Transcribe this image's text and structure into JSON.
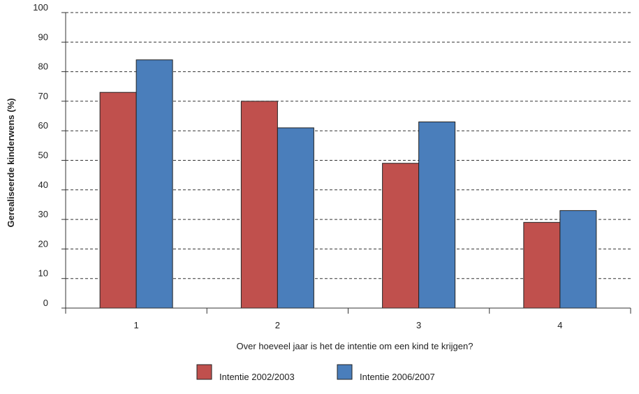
{
  "chart_data": {
    "type": "bar",
    "title": "",
    "xlabel": "Over hoeveel jaar is het de intentie om een kind te krijgen?",
    "ylabel": "Gerealiseerde kinderwens (%)",
    "categories": [
      "1",
      "2",
      "3",
      "4"
    ],
    "ylim": [
      0,
      100
    ],
    "yticks": [
      0,
      10,
      20,
      30,
      40,
      50,
      60,
      70,
      80,
      90,
      100
    ],
    "grid": true,
    "legend_position": "bottom",
    "series": [
      {
        "name": "Intentie 2002/2003",
        "color": "#c0504d",
        "values": [
          73,
          70,
          49,
          29
        ]
      },
      {
        "name": "Intentie 2006/2007",
        "color": "#4a7ebb",
        "values": [
          84,
          61,
          63,
          33
        ]
      }
    ]
  }
}
